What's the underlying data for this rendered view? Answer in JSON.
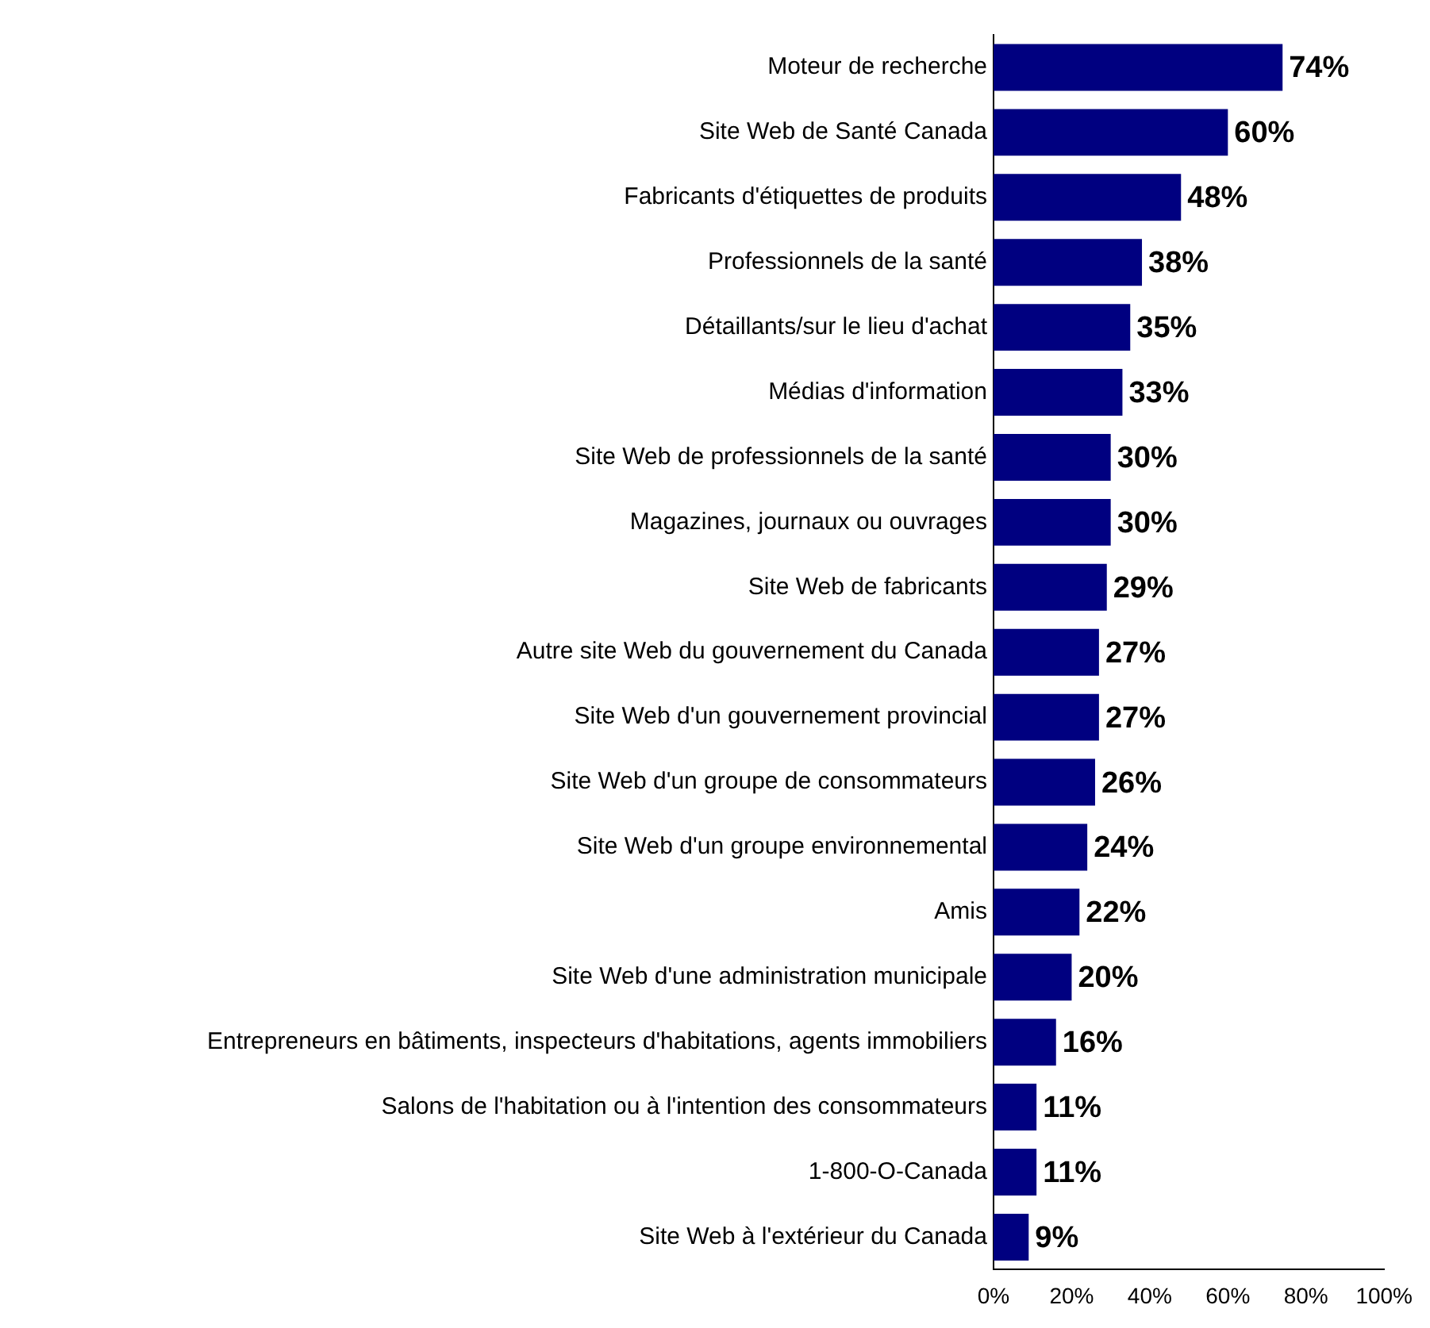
{
  "chart_data": {
    "type": "bar",
    "orientation": "horizontal",
    "categories": [
      "Moteur de recherche",
      "Site Web de Santé Canada",
      "Fabricants d'étiquettes de produits",
      "Professionnels de la santé",
      "Détaillants/sur le lieu d'achat",
      "Médias d'information",
      "Site Web de professionnels de la santé",
      "Magazines, journaux ou ouvrages",
      "Site Web de fabricants",
      "Autre site Web du gouvernement du Canada",
      "Site Web d'un gouvernement provincial",
      "Site Web d'un groupe de consommateurs",
      "Site Web d'un groupe environnemental",
      "Amis",
      "Site Web d'une administration municipale",
      "Entrepreneurs en bâtiments, inspecteurs d'habitations, agents immobiliers",
      "Salons de l'habitation ou à l'intention des consommateurs",
      "1-800-O-Canada",
      "Site Web à l'extérieur du Canada"
    ],
    "values": [
      74,
      60,
      48,
      38,
      35,
      33,
      30,
      30,
      29,
      27,
      27,
      26,
      24,
      22,
      20,
      16,
      11,
      11,
      9
    ],
    "value_labels": [
      "74%",
      "60%",
      "48%",
      "38%",
      "35%",
      "33%",
      "30%",
      "30%",
      "29%",
      "27%",
      "27%",
      "26%",
      "24%",
      "22%",
      "20%",
      "16%",
      "11%",
      "11%",
      "9%"
    ],
    "color": "#000080",
    "xlim": [
      0,
      100
    ],
    "xticks": [
      {
        "value": 0,
        "label": "0%"
      },
      {
        "value": 20,
        "label": "20%"
      },
      {
        "value": 40,
        "label": "40%"
      },
      {
        "value": 60,
        "label": "60%"
      },
      {
        "value": 80,
        "label": "80%"
      },
      {
        "value": 100,
        "label": "100%"
      }
    ],
    "grid": false,
    "legend": false
  }
}
